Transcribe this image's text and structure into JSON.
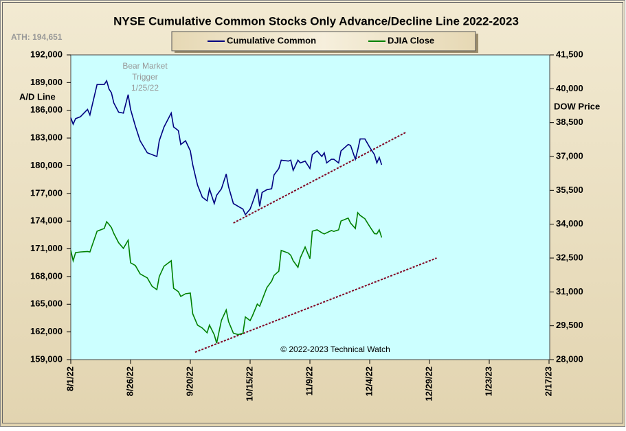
{
  "chart_data": {
    "type": "line",
    "title": "NYSE Cumulative  Common Stocks Only Advance/Decline  Line 2022-2023",
    "annotations": {
      "ath": "ATH: 194,651",
      "trigger": [
        "Bear Market",
        "Trigger",
        "1/25/22"
      ],
      "copyright": "© 2022-2023  Technical Watch"
    },
    "ylabel": "A/D Line",
    "y2label": "DOW  Price",
    "x": [
      "2022-08-01",
      "2022-08-02",
      "2022-08-03",
      "2022-08-05",
      "2022-08-08",
      "2022-08-09",
      "2022-08-12",
      "2022-08-15",
      "2022-08-16",
      "2022-08-17",
      "2022-08-18",
      "2022-08-19",
      "2022-08-21",
      "2022-08-23",
      "2022-08-25",
      "2022-08-26",
      "2022-08-28",
      "2022-08-30",
      "2022-09-02",
      "2022-09-04",
      "2022-09-06",
      "2022-09-07",
      "2022-09-09",
      "2022-09-12",
      "2022-09-13",
      "2022-09-15",
      "2022-09-16",
      "2022-09-18",
      "2022-09-20",
      "2022-09-21",
      "2022-09-23",
      "2022-09-25",
      "2022-09-27",
      "2022-09-28",
      "2022-09-30",
      "2022-10-01",
      "2022-10-03",
      "2022-10-05",
      "2022-10-06",
      "2022-10-08",
      "2022-10-10",
      "2022-10-12",
      "2022-10-13",
      "2022-10-15",
      "2022-10-16",
      "2022-10-18",
      "2022-10-19",
      "2022-10-20",
      "2022-10-22",
      "2022-10-24",
      "2022-10-25",
      "2022-10-27",
      "2022-10-28",
      "2022-10-31",
      "2022-11-01",
      "2022-11-02",
      "2022-11-04",
      "2022-11-05",
      "2022-11-07",
      "2022-11-09",
      "2022-11-10",
      "2022-11-12",
      "2022-11-14",
      "2022-11-15",
      "2022-11-16",
      "2022-11-18",
      "2022-11-19",
      "2022-11-21",
      "2022-11-22",
      "2022-11-25",
      "2022-11-26",
      "2022-11-28",
      "2022-11-29",
      "2022-11-30",
      "2022-12-02",
      "2022-12-04",
      "2022-12-06",
      "2022-12-07",
      "2022-12-08",
      "2022-12-09"
    ],
    "series": [
      {
        "name": "Cumulative Common",
        "color": "#000080",
        "values": [
          185200,
          184500,
          185100,
          185300,
          186100,
          185500,
          188800,
          188800,
          189200,
          188300,
          187900,
          186800,
          185800,
          185700,
          187700,
          186100,
          184300,
          182700,
          181400,
          181200,
          181000,
          182700,
          184200,
          185700,
          184200,
          183800,
          182300,
          182700,
          181600,
          180100,
          177900,
          176600,
          176200,
          177500,
          175900,
          176800,
          177500,
          179100,
          177700,
          175900,
          175600,
          175300,
          174700,
          175300,
          176000,
          177500,
          175600,
          177100,
          177400,
          177500,
          179000,
          179700,
          180600,
          180500,
          180600,
          179500,
          180600,
          180300,
          180500,
          179700,
          181200,
          181600,
          181000,
          181400,
          180300,
          180700,
          180700,
          180300,
          181600,
          182300,
          182200,
          180700,
          181700,
          182900,
          182900,
          182000,
          181200,
          180300,
          180900,
          180100
        ]
      },
      {
        "name": "DJIA Close",
        "color": "#008000",
        "axis": "y2",
        "values": [
          32840,
          32380,
          32740,
          32770,
          32790,
          32770,
          33690,
          33810,
          34110,
          33990,
          33850,
          33590,
          33180,
          32930,
          33290,
          32290,
          32170,
          31800,
          31620,
          31250,
          31100,
          31680,
          32140,
          32380,
          31160,
          31010,
          30800,
          30920,
          30950,
          30030,
          29530,
          29400,
          29190,
          29530,
          29100,
          28730,
          29740,
          30200,
          29680,
          29170,
          29110,
          29170,
          29890,
          29730,
          29950,
          30460,
          30370,
          30640,
          31190,
          31480,
          31730,
          31920,
          32840,
          32720,
          32620,
          32380,
          32090,
          32510,
          32990,
          32470,
          33690,
          33750,
          33620,
          33570,
          33620,
          33720,
          33680,
          33750,
          34140,
          34270,
          34050,
          33810,
          34510,
          34390,
          34240,
          33900,
          33580,
          33570,
          33750,
          33410
        ]
      }
    ],
    "trendlines": [
      {
        "color": "#800020",
        "x": [
          "2022-10-08",
          "2022-12-19"
        ],
        "values": [
          173790,
          183600
        ]
      },
      {
        "color": "#800020",
        "axis": "y2",
        "x": [
          "2022-09-22",
          "2023-01-01"
        ],
        "values": [
          28330,
          32500
        ]
      }
    ],
    "xlim": [
      "2022-08-01",
      "2023-02-17"
    ],
    "xticks": [
      {
        "value": "2022-08-01",
        "label": "8/1/22"
      },
      {
        "value": "2022-08-26",
        "label": "8/26/22"
      },
      {
        "value": "2022-09-20",
        "label": "9/20/22"
      },
      {
        "value": "2022-10-15",
        "label": "10/15/22"
      },
      {
        "value": "2022-11-09",
        "label": "11/9/22"
      },
      {
        "value": "2022-12-04",
        "label": "12/4/22"
      },
      {
        "value": "2022-12-29",
        "label": "12/29/22"
      },
      {
        "value": "2023-01-23",
        "label": "1/23/23"
      },
      {
        "value": "2023-02-17",
        "label": "2/17/23"
      }
    ],
    "ylim": [
      159000,
      192000
    ],
    "yticks": [
      {
        "value": 159000,
        "label": "159,000"
      },
      {
        "value": 162000,
        "label": "162,000"
      },
      {
        "value": 165000,
        "label": "165,000"
      },
      {
        "value": 168000,
        "label": "168,000"
      },
      {
        "value": 171000,
        "label": "171,000"
      },
      {
        "value": 174000,
        "label": "174,000"
      },
      {
        "value": 177000,
        "label": "177,000"
      },
      {
        "value": 180000,
        "label": "180,000"
      },
      {
        "value": 183000,
        "label": "183,000"
      },
      {
        "value": 186000,
        "label": "186,000"
      },
      {
        "value": 189000,
        "label": "189,000"
      },
      {
        "value": 192000,
        "label": "192,000"
      }
    ],
    "y2lim": [
      28000,
      41500
    ],
    "y2ticks": [
      {
        "value": 28000,
        "label": "28,000"
      },
      {
        "value": 29500,
        "label": "29,500"
      },
      {
        "value": 31000,
        "label": "31,000"
      },
      {
        "value": 32500,
        "label": "32,500"
      },
      {
        "value": 34000,
        "label": "34,000"
      },
      {
        "value": 35500,
        "label": "35,500"
      },
      {
        "value": 37000,
        "label": "37,000"
      },
      {
        "value": 38500,
        "label": "38,500"
      },
      {
        "value": 40000,
        "label": "40,000"
      },
      {
        "value": 41500,
        "label": "41,500"
      }
    ],
    "plot_background": "#ccffff"
  }
}
